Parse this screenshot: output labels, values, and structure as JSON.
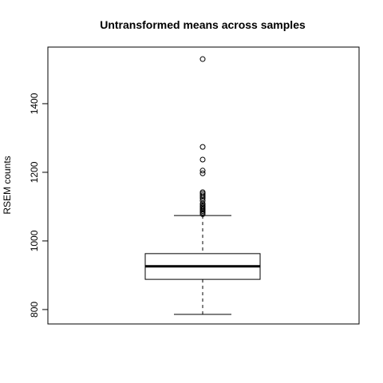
{
  "chart_data": {
    "type": "boxplot",
    "title": "Untransformed means across samples",
    "xlabel": "",
    "ylabel": "RSEM counts",
    "ylim": [
      758,
      1565
    ],
    "yticks": [
      800,
      1000,
      1200,
      1400
    ],
    "grid": false,
    "legend": "none",
    "series": [
      {
        "whisker_low": 786,
        "q1": 888,
        "median": 926,
        "q3": 963,
        "whisker_high": 1074,
        "outliers": [
          1078,
          1083,
          1087,
          1091,
          1094,
          1098,
          1101,
          1105,
          1109,
          1117,
          1124,
          1129,
          1133,
          1138,
          1142,
          1197,
          1205,
          1237,
          1274,
          1530
        ]
      }
    ]
  }
}
